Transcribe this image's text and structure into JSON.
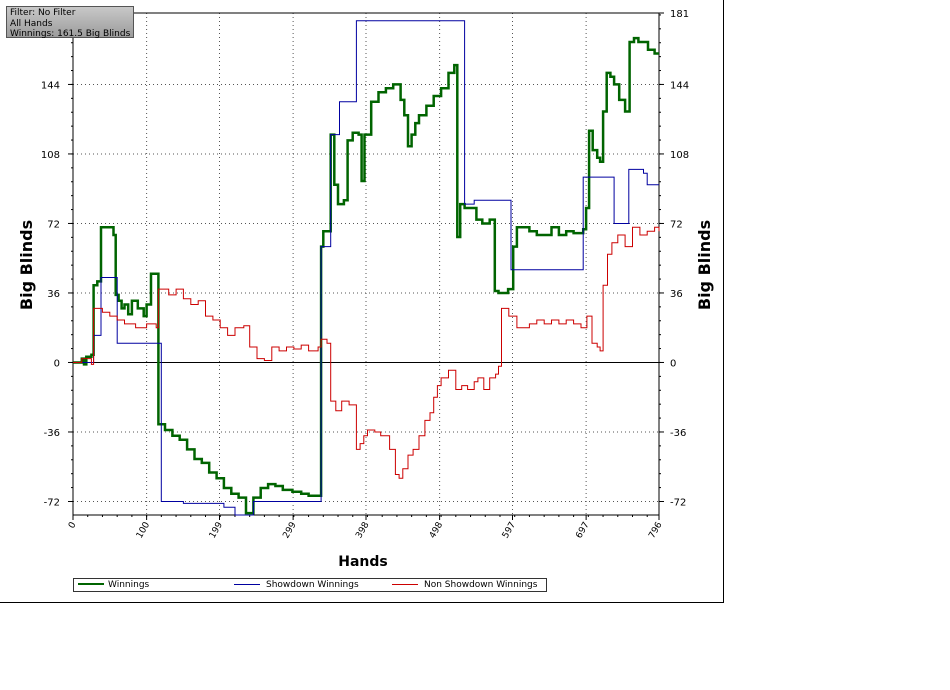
{
  "info": {
    "filter": "Filter: No Filter",
    "hands": "All Hands",
    "winnings": "Winnings: 161.5 Big Blinds"
  },
  "chart_data": {
    "type": "line",
    "xlabel": "Hands",
    "ylabel": "Big Blinds",
    "ylabel_right": "Big Blinds",
    "xlim": [
      0,
      796
    ],
    "ylim": [
      -79,
      181
    ],
    "x_ticks": [
      "0",
      "100",
      "199",
      "299",
      "398",
      "498",
      "597",
      "697",
      "796"
    ],
    "y_ticks": [
      "-72",
      "-36",
      "0",
      "36",
      "72",
      "108",
      "144"
    ],
    "y_ticks_right": [
      "-72",
      "-36",
      "0",
      "36",
      "72",
      "108",
      "144",
      "181"
    ],
    "grid": true,
    "legend_position": "bottom",
    "series": [
      {
        "name": "Winnings",
        "color": "#006400",
        "points": [
          [
            0,
            0
          ],
          [
            12,
            2
          ],
          [
            15,
            -1
          ],
          [
            18,
            3
          ],
          [
            25,
            4
          ],
          [
            28,
            40
          ],
          [
            33,
            42
          ],
          [
            38,
            70
          ],
          [
            50,
            70
          ],
          [
            55,
            66
          ],
          [
            58,
            35
          ],
          [
            62,
            32
          ],
          [
            66,
            28
          ],
          [
            70,
            30
          ],
          [
            75,
            25
          ],
          [
            80,
            32
          ],
          [
            88,
            28
          ],
          [
            96,
            24
          ],
          [
            100,
            30
          ],
          [
            106,
            46
          ],
          [
            113,
            46
          ],
          [
            116,
            -32
          ],
          [
            125,
            -35
          ],
          [
            135,
            -38
          ],
          [
            145,
            -40
          ],
          [
            155,
            -45
          ],
          [
            165,
            -50
          ],
          [
            175,
            -52
          ],
          [
            185,
            -57
          ],
          [
            195,
            -60
          ],
          [
            205,
            -65
          ],
          [
            215,
            -68
          ],
          [
            225,
            -70
          ],
          [
            235,
            -78
          ],
          [
            245,
            -70
          ],
          [
            255,
            -65
          ],
          [
            265,
            -63
          ],
          [
            275,
            -64
          ],
          [
            285,
            -66
          ],
          [
            298,
            -67
          ],
          [
            310,
            -68
          ],
          [
            320,
            -69
          ],
          [
            333,
            -69
          ],
          [
            337,
            60
          ],
          [
            340,
            68
          ],
          [
            345,
            68
          ],
          [
            350,
            118
          ],
          [
            355,
            92
          ],
          [
            360,
            82
          ],
          [
            368,
            84
          ],
          [
            373,
            115
          ],
          [
            380,
            119
          ],
          [
            388,
            118
          ],
          [
            392,
            94
          ],
          [
            396,
            118
          ],
          [
            405,
            135
          ],
          [
            415,
            140
          ],
          [
            425,
            142
          ],
          [
            435,
            144
          ],
          [
            445,
            136
          ],
          [
            450,
            128
          ],
          [
            455,
            112
          ],
          [
            460,
            118
          ],
          [
            465,
            124
          ],
          [
            470,
            128
          ],
          [
            480,
            133
          ],
          [
            490,
            138
          ],
          [
            500,
            142
          ],
          [
            510,
            150
          ],
          [
            518,
            154
          ],
          [
            522,
            65
          ],
          [
            526,
            82
          ],
          [
            532,
            80
          ],
          [
            540,
            80
          ],
          [
            548,
            74
          ],
          [
            556,
            72
          ],
          [
            566,
            74
          ],
          [
            573,
            37
          ],
          [
            578,
            36
          ],
          [
            585,
            36
          ],
          [
            591,
            38
          ],
          [
            598,
            60
          ],
          [
            603,
            70
          ],
          [
            612,
            70
          ],
          [
            620,
            68
          ],
          [
            630,
            66
          ],
          [
            640,
            66
          ],
          [
            650,
            70
          ],
          [
            660,
            66
          ],
          [
            670,
            68
          ],
          [
            680,
            67
          ],
          [
            693,
            69
          ],
          [
            697,
            80
          ],
          [
            701,
            120
          ],
          [
            706,
            110
          ],
          [
            712,
            106
          ],
          [
            716,
            104
          ],
          [
            720,
            130
          ],
          [
            725,
            150
          ],
          [
            730,
            148
          ],
          [
            735,
            144
          ],
          [
            742,
            136
          ],
          [
            750,
            130
          ],
          [
            756,
            166
          ],
          [
            762,
            168
          ],
          [
            768,
            166
          ],
          [
            775,
            166
          ],
          [
            781,
            162
          ],
          [
            790,
            160
          ],
          [
            796,
            160
          ]
        ]
      },
      {
        "name": "Showdown Winnings",
        "color": "#0000a0",
        "points": [
          [
            0,
            0
          ],
          [
            18,
            0
          ],
          [
            28,
            14
          ],
          [
            34,
            14
          ],
          [
            38,
            44
          ],
          [
            56,
            44
          ],
          [
            60,
            10
          ],
          [
            118,
            10
          ],
          [
            120,
            -72
          ],
          [
            150,
            -73
          ],
          [
            200,
            -73
          ],
          [
            205,
            -75
          ],
          [
            215,
            -75
          ],
          [
            220,
            -79
          ],
          [
            245,
            -72
          ],
          [
            333,
            -72
          ],
          [
            337,
            60
          ],
          [
            345,
            60
          ],
          [
            350,
            118
          ],
          [
            357,
            118
          ],
          [
            362,
            135
          ],
          [
            380,
            135
          ],
          [
            385,
            177
          ],
          [
            530,
            177
          ],
          [
            532,
            82
          ],
          [
            540,
            82
          ],
          [
            545,
            84
          ],
          [
            590,
            84
          ],
          [
            595,
            48
          ],
          [
            690,
            48
          ],
          [
            693,
            96
          ],
          [
            730,
            96
          ],
          [
            735,
            72
          ],
          [
            752,
            72
          ],
          [
            755,
            100
          ],
          [
            775,
            98
          ],
          [
            780,
            92
          ],
          [
            796,
            92
          ]
        ]
      },
      {
        "name": "Non Showdown Winnings",
        "color": "#cc0000",
        "points": [
          [
            0,
            0
          ],
          [
            12,
            2
          ],
          [
            25,
            -1
          ],
          [
            28,
            28
          ],
          [
            40,
            26
          ],
          [
            50,
            24
          ],
          [
            60,
            22
          ],
          [
            70,
            20
          ],
          [
            85,
            18
          ],
          [
            100,
            20
          ],
          [
            113,
            18
          ],
          [
            116,
            38
          ],
          [
            130,
            35
          ],
          [
            140,
            38
          ],
          [
            150,
            33
          ],
          [
            160,
            30
          ],
          [
            170,
            32
          ],
          [
            180,
            24
          ],
          [
            190,
            22
          ],
          [
            200,
            18
          ],
          [
            210,
            14
          ],
          [
            220,
            18
          ],
          [
            232,
            19
          ],
          [
            240,
            8
          ],
          [
            250,
            2
          ],
          [
            260,
            1
          ],
          [
            270,
            8
          ],
          [
            280,
            6
          ],
          [
            290,
            8
          ],
          [
            300,
            7
          ],
          [
            310,
            9
          ],
          [
            320,
            6
          ],
          [
            333,
            8
          ],
          [
            337,
            12
          ],
          [
            345,
            10
          ],
          [
            350,
            -20
          ],
          [
            357,
            -25
          ],
          [
            365,
            -20
          ],
          [
            375,
            -22
          ],
          [
            385,
            -45
          ],
          [
            390,
            -42
          ],
          [
            395,
            -38
          ],
          [
            400,
            -35
          ],
          [
            410,
            -36
          ],
          [
            418,
            -38
          ],
          [
            425,
            -38
          ],
          [
            430,
            -45
          ],
          [
            438,
            -58
          ],
          [
            443,
            -60
          ],
          [
            448,
            -55
          ],
          [
            455,
            -48
          ],
          [
            462,
            -45
          ],
          [
            470,
            -38
          ],
          [
            478,
            -30
          ],
          [
            485,
            -26
          ],
          [
            490,
            -18
          ],
          [
            495,
            -12
          ],
          [
            500,
            -8
          ],
          [
            510,
            -4
          ],
          [
            520,
            -14
          ],
          [
            528,
            -12
          ],
          [
            536,
            -14
          ],
          [
            545,
            -10
          ],
          [
            550,
            -8
          ],
          [
            558,
            -14
          ],
          [
            566,
            -8
          ],
          [
            574,
            -6
          ],
          [
            578,
            -2
          ],
          [
            582,
            28
          ],
          [
            592,
            24
          ],
          [
            603,
            18
          ],
          [
            610,
            18
          ],
          [
            620,
            20
          ],
          [
            630,
            22
          ],
          [
            640,
            20
          ],
          [
            650,
            22
          ],
          [
            660,
            20
          ],
          [
            670,
            22
          ],
          [
            680,
            20
          ],
          [
            690,
            18
          ],
          [
            698,
            24
          ],
          [
            700,
            24
          ],
          [
            705,
            10
          ],
          [
            712,
            8
          ],
          [
            716,
            6
          ],
          [
            720,
            40
          ],
          [
            726,
            56
          ],
          [
            732,
            62
          ],
          [
            740,
            66
          ],
          [
            750,
            60
          ],
          [
            760,
            70
          ],
          [
            770,
            66
          ],
          [
            780,
            68
          ],
          [
            790,
            70
          ],
          [
            796,
            68
          ]
        ]
      }
    ]
  }
}
